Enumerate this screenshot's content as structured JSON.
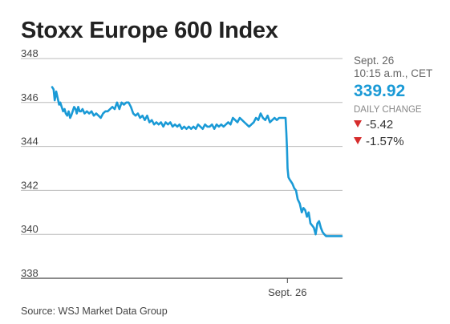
{
  "title": "Stoxx Europe 600 Index",
  "source": "Source: WSJ Market Data Group",
  "panel": {
    "date": "Sept. 26",
    "time": "10:15 a.m., CET",
    "price": "339.92",
    "change_label": "DAILY CHANGE",
    "change_points": "-5.42",
    "change_percent": "-1.57%",
    "down_icon": "down-triangle-icon",
    "price_color": "#1a9ad6",
    "down_color": "#d62c2c"
  },
  "chart_data": {
    "type": "line",
    "title": "Stoxx Europe 600 Index",
    "xlabel": "",
    "ylabel": "",
    "ylim": [
      338,
      348
    ],
    "yticks": [
      338,
      340,
      342,
      344,
      346,
      348
    ],
    "ytick_labels": [
      "338",
      "340",
      "342",
      "344",
      "346",
      "348"
    ],
    "xtick_labels": [
      "Sept. 26"
    ],
    "xtick_positions": [
      0.8125
    ],
    "xlim": [
      0,
      1
    ],
    "grid": true,
    "line_color": "#1a9ad6",
    "series": [
      {
        "name": "",
        "x": [
          0.0,
          0.005,
          0.009,
          0.014,
          0.019,
          0.024,
          0.028,
          0.033,
          0.038,
          0.043,
          0.047,
          0.052,
          0.057,
          0.062,
          0.066,
          0.071,
          0.076,
          0.081,
          0.085,
          0.09,
          0.095,
          0.1,
          0.105,
          0.112,
          0.12,
          0.128,
          0.136,
          0.144,
          0.152,
          0.16,
          0.168,
          0.176,
          0.184,
          0.192,
          0.2,
          0.208,
          0.216,
          0.224,
          0.232,
          0.24,
          0.248,
          0.256,
          0.264,
          0.272,
          0.28,
          0.288,
          0.296,
          0.304,
          0.312,
          0.32,
          0.328,
          0.336,
          0.344,
          0.352,
          0.36,
          0.368,
          0.376,
          0.384,
          0.392,
          0.4,
          0.408,
          0.416,
          0.424,
          0.432,
          0.44,
          0.448,
          0.456,
          0.464,
          0.472,
          0.48,
          0.488,
          0.496,
          0.504,
          0.512,
          0.52,
          0.528,
          0.536,
          0.544,
          0.552,
          0.56,
          0.568,
          0.576,
          0.584,
          0.592,
          0.6,
          0.608,
          0.616,
          0.624,
          0.632,
          0.64,
          0.648,
          0.656,
          0.664,
          0.672,
          0.68,
          0.688,
          0.696,
          0.704,
          0.712,
          0.72,
          0.728,
          0.736,
          0.744,
          0.752,
          0.76,
          0.768,
          0.776,
          0.784,
          0.792,
          0.8,
          0.806,
          0.809,
          0.811,
          0.813,
          0.816,
          0.82,
          0.825,
          0.83,
          0.836,
          0.842,
          0.848,
          0.855,
          0.862,
          0.868,
          0.874,
          0.88,
          0.886,
          0.892,
          0.898,
          0.904,
          0.91,
          0.916,
          0.922,
          0.928,
          0.934,
          0.94,
          0.946,
          0.952,
          0.958,
          0.964,
          0.97,
          0.976,
          0.982,
          0.988,
          0.994,
          1.0
        ],
        "values": [
          346.7,
          346.6,
          346.1,
          346.5,
          346.2,
          345.9,
          346.0,
          345.8,
          345.6,
          345.7,
          345.5,
          345.4,
          345.6,
          345.3,
          345.4,
          345.6,
          345.8,
          345.7,
          345.5,
          345.8,
          345.6,
          345.6,
          345.7,
          345.5,
          345.6,
          345.5,
          345.6,
          345.4,
          345.5,
          345.4,
          345.3,
          345.5,
          345.6,
          345.6,
          345.7,
          345.8,
          345.7,
          346.0,
          345.7,
          346.0,
          345.9,
          346.0,
          346.0,
          345.8,
          345.5,
          345.4,
          345.5,
          345.3,
          345.4,
          345.2,
          345.4,
          345.1,
          345.2,
          345.0,
          345.1,
          345.0,
          345.1,
          344.9,
          345.1,
          345.0,
          345.1,
          344.9,
          345.0,
          344.9,
          345.0,
          344.8,
          344.9,
          344.8,
          344.9,
          344.8,
          344.9,
          344.8,
          345.0,
          344.9,
          344.8,
          345.0,
          344.9,
          344.9,
          345.0,
          344.8,
          345.0,
          344.9,
          345.0,
          344.9,
          345.0,
          345.1,
          345.0,
          345.3,
          345.2,
          345.1,
          345.3,
          345.2,
          345.1,
          345.0,
          344.9,
          345.0,
          345.1,
          345.3,
          345.2,
          345.5,
          345.3,
          345.2,
          345.4,
          345.1,
          345.2,
          345.3,
          345.2,
          345.3,
          345.3,
          345.3,
          345.3,
          344.6,
          343.9,
          343.0,
          342.6,
          342.5,
          342.4,
          342.3,
          342.1,
          342.0,
          341.6,
          341.4,
          341.0,
          341.2,
          341.1,
          340.8,
          341.0,
          340.5,
          340.4,
          340.3,
          340.0,
          340.5,
          340.6,
          340.3,
          340.1,
          340.0,
          339.92,
          339.92,
          339.92,
          339.92,
          339.92,
          339.92,
          339.92,
          339.92,
          339.92,
          339.92
        ]
      }
    ]
  }
}
